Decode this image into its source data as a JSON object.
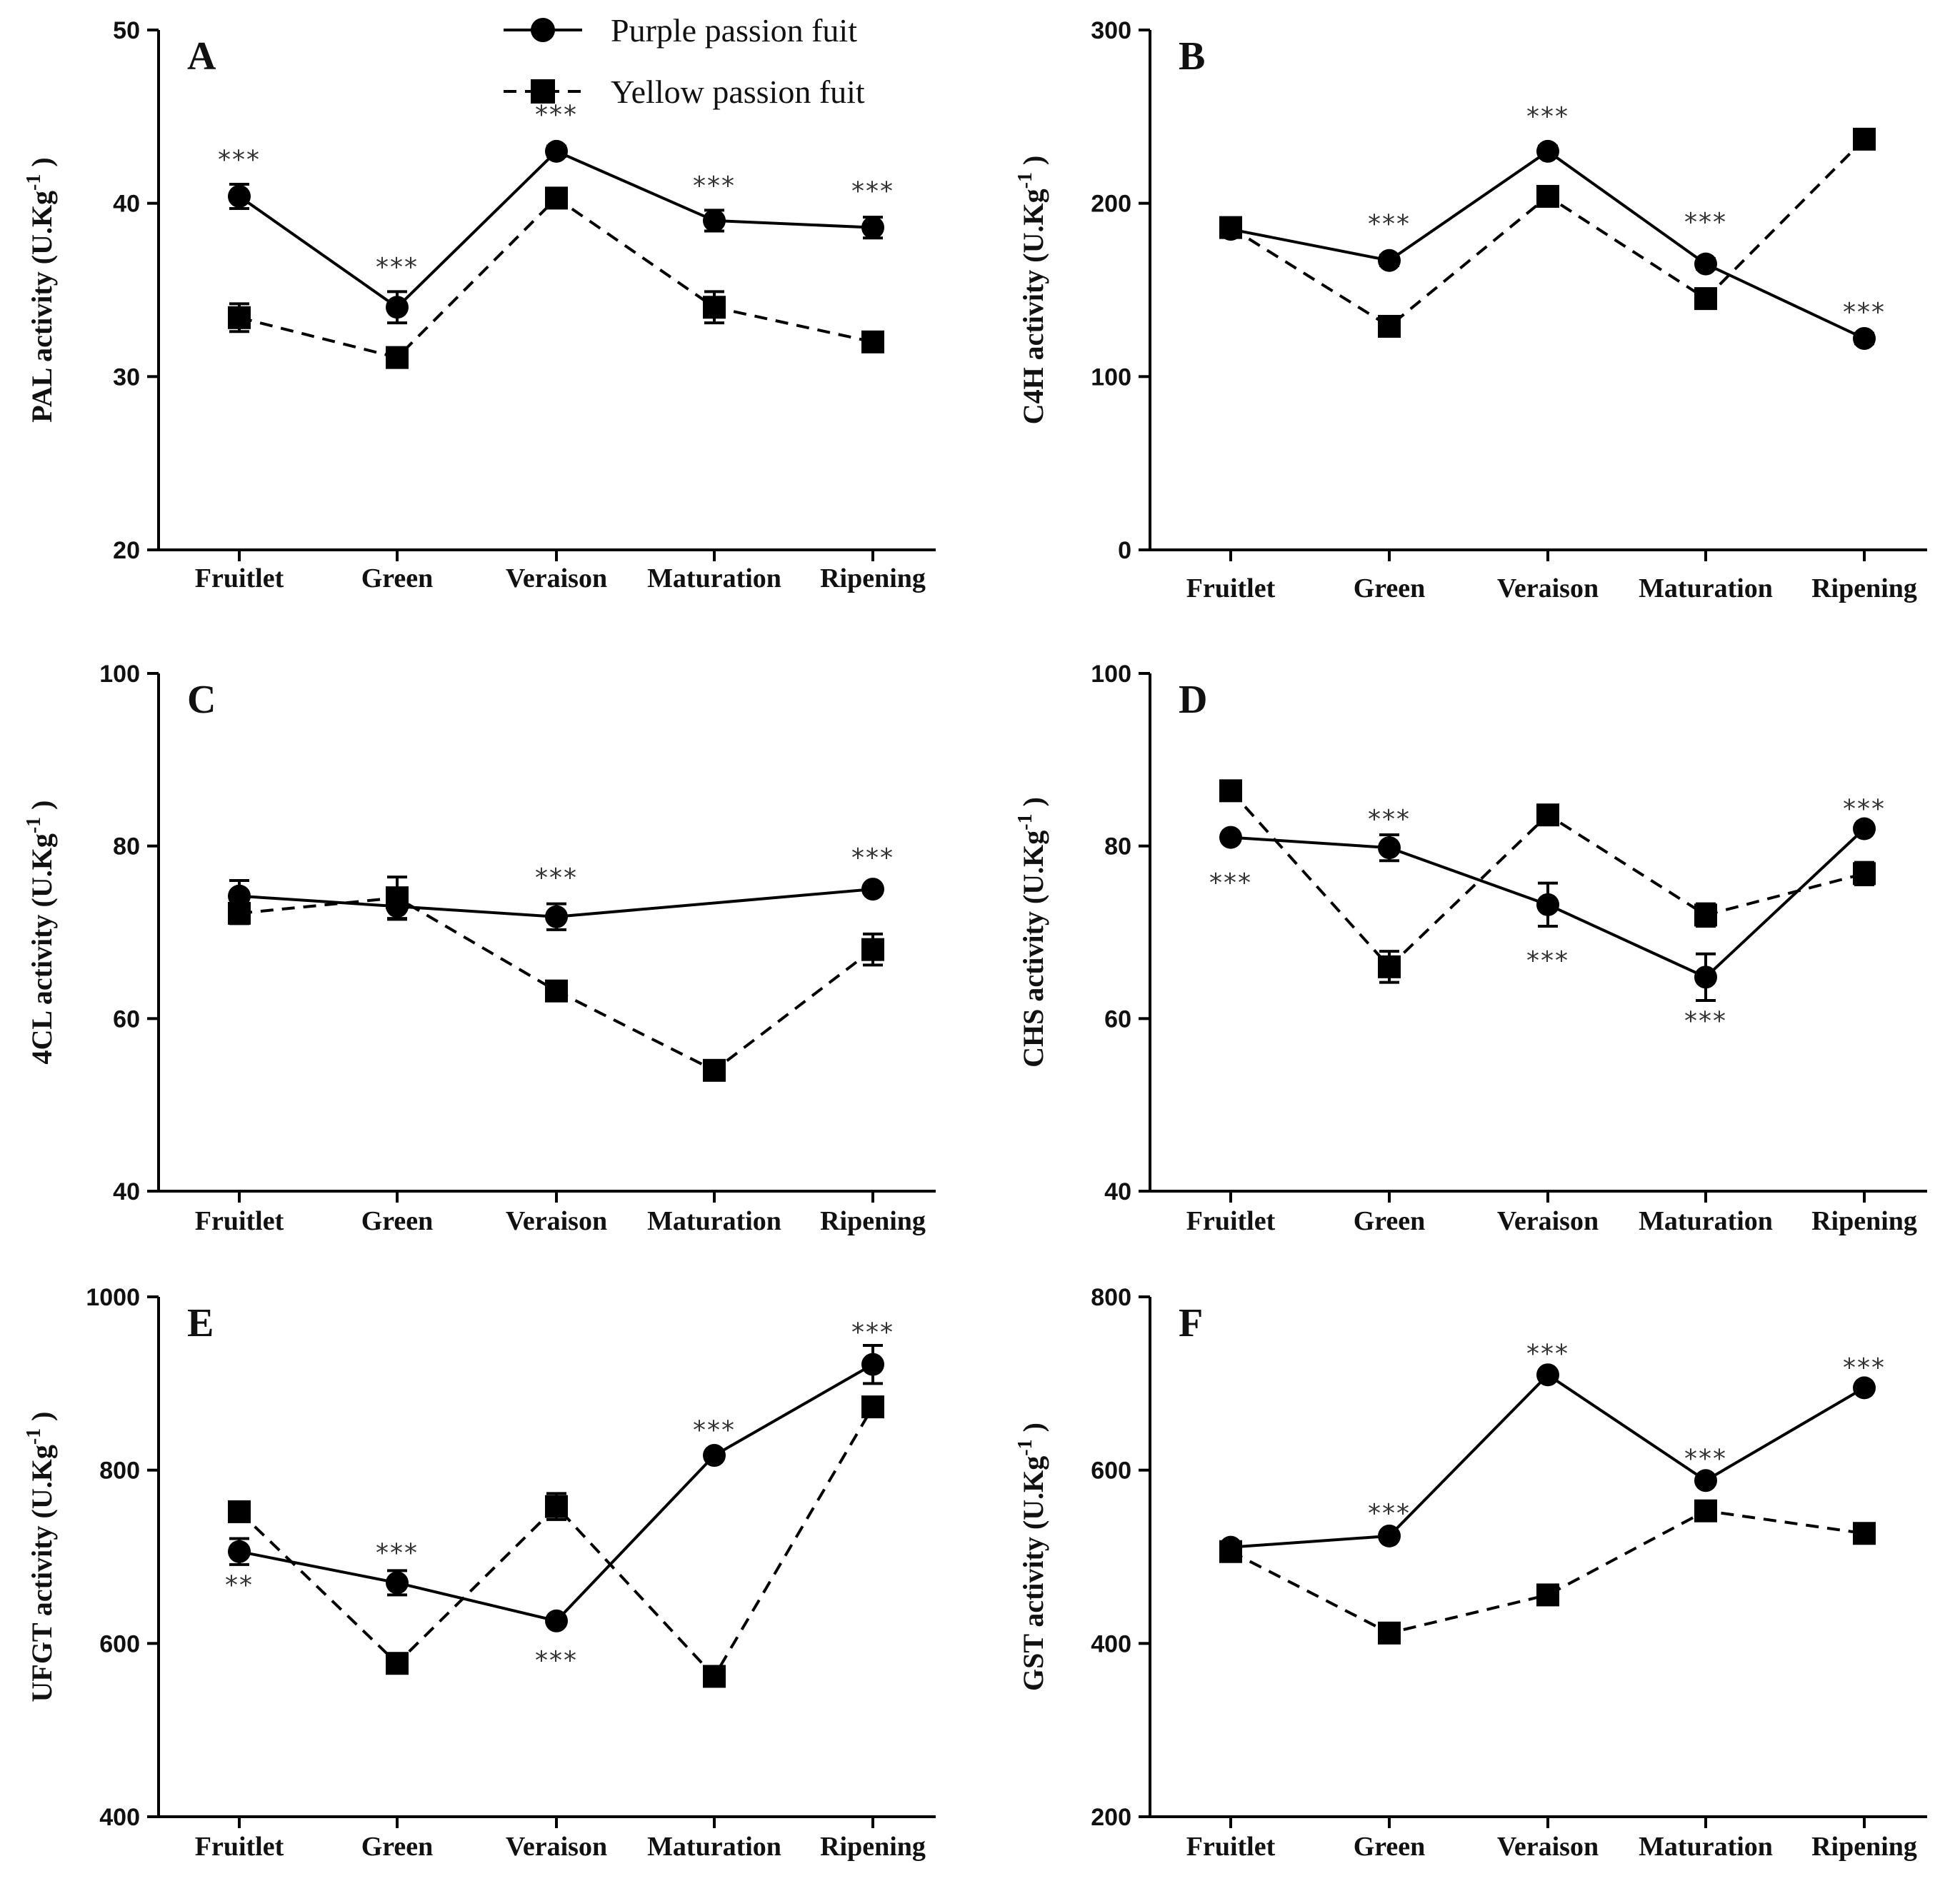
{
  "chart_data": {
    "type": "line",
    "legend": {
      "placement": "top-center",
      "entries": [
        "Purple passion fuit",
        "Yellow passion fuit"
      ]
    },
    "categories": [
      "Fruitlet",
      "Green",
      "Veraison",
      "Maturation",
      "Ripening"
    ],
    "series_names": [
      "Purple passion fuit",
      "Yellow passion fuit"
    ],
    "panels": [
      {
        "letter": "A",
        "ylabel_main": "PAL activity (U.Kg",
        "ylabel_sup": "-1",
        "ylabel_close": ")",
        "ylim": [
          20,
          50
        ],
        "yticks": [
          20,
          30,
          40,
          50
        ],
        "series": [
          {
            "name": "Purple passion fuit",
            "values": [
              40.4,
              34.0,
              43.0,
              39.0,
              38.6
            ],
            "errors": [
              0.7,
              0.9,
              0.3,
              0.6,
              0.6
            ]
          },
          {
            "name": "Yellow passion fuit",
            "values": [
              33.4,
              31.1,
              40.3,
              34.0,
              32.0
            ],
            "errors": [
              0.8,
              0.4,
              0.4,
              0.9,
              0.3
            ]
          }
        ],
        "annotations": [
          {
            "category": "Fruitlet",
            "value": 42.6,
            "text": "***"
          },
          {
            "category": "Green",
            "value": 36.4,
            "text": "***"
          },
          {
            "category": "Veraison",
            "value": 45.2,
            "text": "***"
          },
          {
            "category": "Maturation",
            "value": 41.1,
            "text": "***"
          },
          {
            "category": "Ripening",
            "value": 40.8,
            "text": "***"
          }
        ]
      },
      {
        "letter": "B",
        "ylabel_main": "C4H activity (U.Kg",
        "ylabel_sup": "-1",
        "ylabel_close": ")",
        "ylim": [
          0,
          300
        ],
        "yticks": [
          0,
          100,
          200,
          300
        ],
        "series": [
          {
            "name": "Purple passion fuit",
            "values": [
              185,
              167,
              230,
              165,
              122
            ],
            "errors": [
              3,
              3,
              3,
              3,
              3
            ]
          },
          {
            "name": "Yellow passion fuit",
            "values": [
              186,
              129,
              204,
              145,
              237
            ],
            "errors": [
              3,
              3,
              3,
              3,
              3
            ]
          }
        ],
        "annotations": [
          {
            "category": "Green",
            "value": 189,
            "text": "***"
          },
          {
            "category": "Veraison",
            "value": 251,
            "text": "***"
          },
          {
            "category": "Maturation",
            "value": 190,
            "text": "***"
          },
          {
            "category": "Ripening",
            "value": 138,
            "text": "***"
          }
        ]
      },
      {
        "letter": "C",
        "ylabel_main": "4CL activity (U.Kg",
        "ylabel_sup": "-1",
        "ylabel_close": ")",
        "ylim": [
          40,
          100
        ],
        "yticks": [
          40,
          60,
          80,
          100
        ],
        "series": [
          {
            "name": "Purple passion fuit",
            "values": [
              74.2,
              73.0,
              71.8,
              null,
              75.0
            ],
            "errors": [
              1.8,
              1.5,
              1.5,
              0,
              0.4
            ]
          },
          {
            "name": "Yellow passion fuit",
            "values": [
              72.2,
              74.0,
              63.2,
              54.0,
              68.0
            ],
            "errors": [
              1.2,
              2.4,
              1.1,
              0.5,
              1.8
            ]
          }
        ],
        "annotations": [
          {
            "category": "Veraison",
            "value": 76.5,
            "text": "***"
          },
          {
            "category": "Ripening",
            "value": 78.8,
            "text": "***"
          }
        ]
      },
      {
        "letter": "D",
        "ylabel_main": "CHS activity (U.Kg",
        "ylabel_sup": "-1",
        "ylabel_close": ")",
        "ylim": [
          40,
          100
        ],
        "yticks": [
          40,
          60,
          80,
          100
        ],
        "series": [
          {
            "name": "Purple passion fuit",
            "values": [
              81.0,
              79.8,
              73.2,
              64.8,
              82.0
            ],
            "errors": [
              0.4,
              1.5,
              2.5,
              2.7,
              0.5
            ]
          },
          {
            "name": "Yellow passion fuit",
            "values": [
              86.4,
              66.0,
              83.6,
              72.0,
              76.8
            ],
            "errors": [
              0.5,
              1.8,
              0.5,
              1.3,
              1.3
            ]
          }
        ],
        "annotations": [
          {
            "category": "Fruitlet",
            "value": 75.9,
            "text": "***"
          },
          {
            "category": "Green",
            "value": 83.3,
            "text": "***"
          },
          {
            "category": "Veraison",
            "value": 66.9,
            "text": "***"
          },
          {
            "category": "Maturation",
            "value": 59.9,
            "text": "***"
          },
          {
            "category": "Ripening",
            "value": 84.5,
            "text": "***"
          }
        ]
      },
      {
        "letter": "E",
        "ylabel_main": "UFGT activity (U.Kg",
        "ylabel_sup": "-1",
        "ylabel_close": ")",
        "ylim": [
          400,
          1000
        ],
        "yticks": [
          400,
          600,
          800,
          1000
        ],
        "series": [
          {
            "name": "Purple passion fuit",
            "values": [
              706,
              670,
              626,
              817,
              922
            ],
            "errors": [
              15,
              14,
              5,
              5,
              22
            ]
          },
          {
            "name": "Yellow passion fuit",
            "values": [
              752,
              577,
              758,
              562,
              873
            ],
            "errors": [
              7,
              7,
              15,
              7,
              7
            ]
          }
        ],
        "annotations": [
          {
            "category": "Fruitlet",
            "value": 669,
            "text": "**"
          },
          {
            "category": "Green",
            "value": 706,
            "text": "***"
          },
          {
            "category": "Veraison",
            "value": 582,
            "text": "***"
          },
          {
            "category": "Maturation",
            "value": 848,
            "text": "***"
          },
          {
            "category": "Ripening",
            "value": 961,
            "text": "***"
          }
        ]
      },
      {
        "letter": "F",
        "ylabel_main": "GST activity (U.Kg",
        "ylabel_sup": "-1",
        "ylabel_close": ")",
        "ylim": [
          200,
          800
        ],
        "yticks": [
          200,
          400,
          600,
          800
        ],
        "series": [
          {
            "name": "Purple passion fuit",
            "values": [
              511,
              524,
              710,
              588,
              695
            ],
            "errors": [
              4,
              4,
              4,
              4,
              4
            ]
          },
          {
            "name": "Yellow passion fuit",
            "values": [
              506,
              412,
              456,
              553,
              527
            ],
            "errors": [
              4,
              4,
              4,
              4,
              4
            ]
          }
        ],
        "annotations": [
          {
            "category": "Green",
            "value": 552,
            "text": "***"
          },
          {
            "category": "Veraison",
            "value": 736,
            "text": "***"
          },
          {
            "category": "Maturation",
            "value": 615,
            "text": "***"
          },
          {
            "category": "Ripening",
            "value": 720,
            "text": "***"
          }
        ]
      }
    ]
  }
}
